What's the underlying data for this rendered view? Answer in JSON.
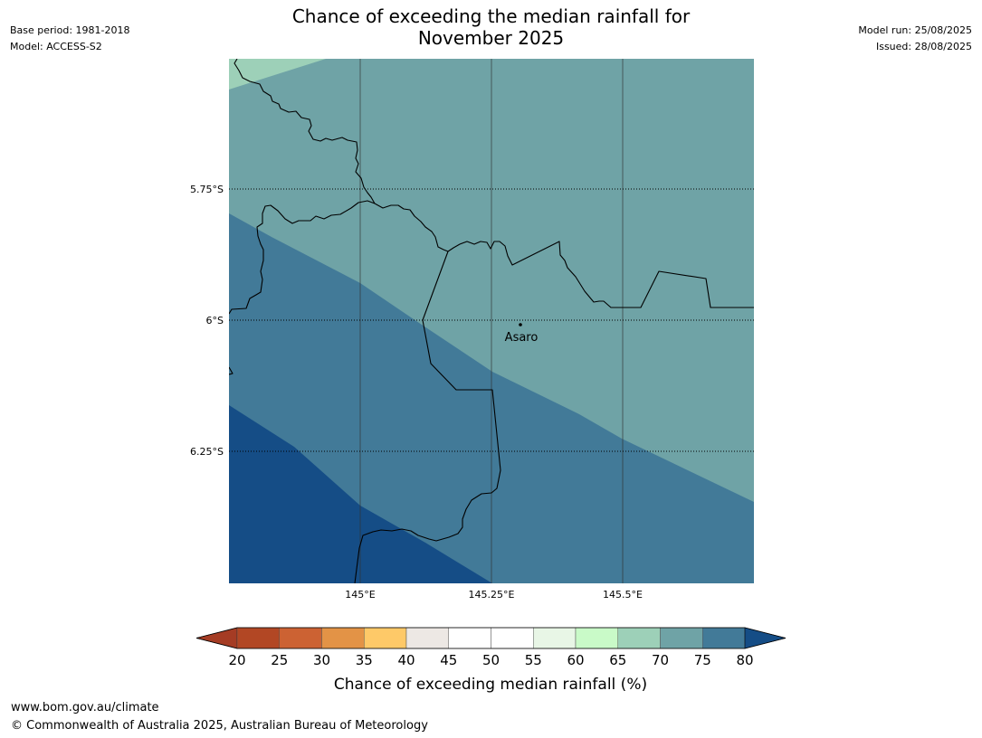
{
  "header": {
    "title_line1": "Chance of exceeding the median rainfall for",
    "title_line2": "November 2025",
    "base_period": "Base period: 1981-2018",
    "model": "Model: ACCESS-S2",
    "model_run": "Model run: 25/08/2025",
    "issued": "Issued: 28/08/2025"
  },
  "map": {
    "lat_labels": [
      "5.75°S",
      "6°S",
      "6.25°S"
    ],
    "lon_labels": [
      "145°E",
      "145.25°E",
      "145.5°E"
    ],
    "place_label": "Asaro",
    "colors": {
      "band_65_70": "#9dd0b8",
      "band_70_75": "#6fa3a6",
      "band_75_80": "#427a98",
      "band_80_plus": "#154d86"
    }
  },
  "colorbar": {
    "tick_labels": [
      "20",
      "25",
      "30",
      "35",
      "40",
      "45",
      "50",
      "55",
      "60",
      "65",
      "70",
      "75",
      "80"
    ],
    "colors": [
      "#a53c24",
      "#b24724",
      "#cc6233",
      "#e39346",
      "#fec968",
      "#ede8e4",
      "#ffffff",
      "#ffffff",
      "#e8f6e6",
      "#c9fac8",
      "#9dd0b8",
      "#6fa3a6",
      "#427a98",
      "#154d86"
    ],
    "label": "Chance of exceeding median rainfall (%)"
  },
  "footer": {
    "url": "www.bom.gov.au/climate",
    "copyright": "© Commonwealth of Australia 2025, Australian Bureau of Meteorology"
  }
}
